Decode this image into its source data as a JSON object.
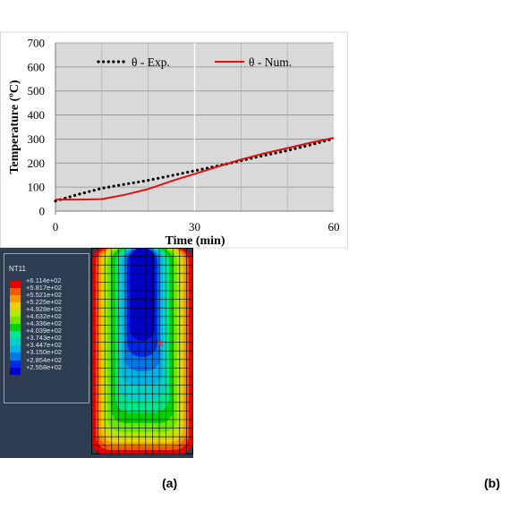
{
  "chart_data": {
    "type": "line",
    "xlabel": "Time (min)",
    "ylabel": "Temperature (ºC)",
    "xlim": [
      0,
      60
    ],
    "ylim": [
      0,
      700
    ],
    "x_ticks": [
      "0",
      "30",
      "60"
    ],
    "y_ticks": [
      "0",
      "100",
      "200",
      "300",
      "400",
      "500",
      "600",
      "700"
    ],
    "x_tick_values": [
      0,
      30,
      60
    ],
    "y_tick_values": [
      0,
      100,
      200,
      300,
      400,
      500,
      600,
      700
    ],
    "grid": true,
    "legend_position": "top",
    "series": [
      {
        "name": "θ - Exp.",
        "style": "dotted",
        "color": "#000000",
        "x": [
          0,
          5,
          10,
          15,
          20,
          25,
          30,
          35,
          40,
          45,
          50,
          55,
          60
        ],
        "y": [
          42,
          70,
          95,
          112,
          128,
          148,
          168,
          188,
          210,
          232,
          252,
          276,
          302
        ]
      },
      {
        "name": "θ - Num.",
        "style": "solid",
        "color": "#e01010",
        "x": [
          0,
          5,
          10,
          15,
          20,
          25,
          30,
          35,
          40,
          45,
          50,
          55,
          60
        ],
        "y": [
          48,
          48,
          50,
          68,
          92,
          125,
          155,
          185,
          215,
          240,
          262,
          285,
          305
        ]
      }
    ]
  },
  "fea": {
    "legend_title": "NT11",
    "legend_values": [
      "+6.114e+02",
      "+5.817e+02",
      "+5.521e+02",
      "+5.225e+02",
      "+4.928e+02",
      "+4.632e+02",
      "+4.336e+02",
      "+4.039e+02",
      "+3.743e+02",
      "+3.447e+02",
      "+3.150e+02",
      "+2.854e+02",
      "+2.558e+02"
    ],
    "legend_colors": [
      "#e60000",
      "#f55a00",
      "#f59a00",
      "#ead000",
      "#b8e600",
      "#6ee600",
      "#00d200",
      "#00e68c",
      "#00d2c8",
      "#00b4e6",
      "#0078e6",
      "#0028e6",
      "#0000c8"
    ]
  },
  "panel_labels": {
    "a": "(a)",
    "b": "(b)"
  }
}
